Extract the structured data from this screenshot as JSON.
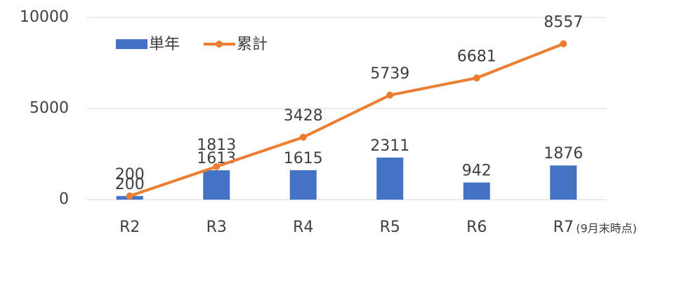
{
  "chart_data": {
    "type": "bar_line",
    "categories": [
      "R2",
      "R3",
      "R4",
      "R5",
      "R6",
      "R7"
    ],
    "annotation": "(9月末時点)",
    "series": [
      {
        "name": "単年",
        "type": "bar",
        "color": "#4472c4",
        "values": [
          200,
          1613,
          1615,
          2311,
          942,
          1876
        ]
      },
      {
        "name": "累計",
        "type": "line",
        "color": "#ed7d31",
        "values": [
          200,
          1813,
          3428,
          5739,
          6681,
          8557
        ]
      }
    ],
    "ylim": [
      0,
      10000
    ],
    "yticks": [
      0,
      5000,
      10000
    ],
    "grid": true
  }
}
